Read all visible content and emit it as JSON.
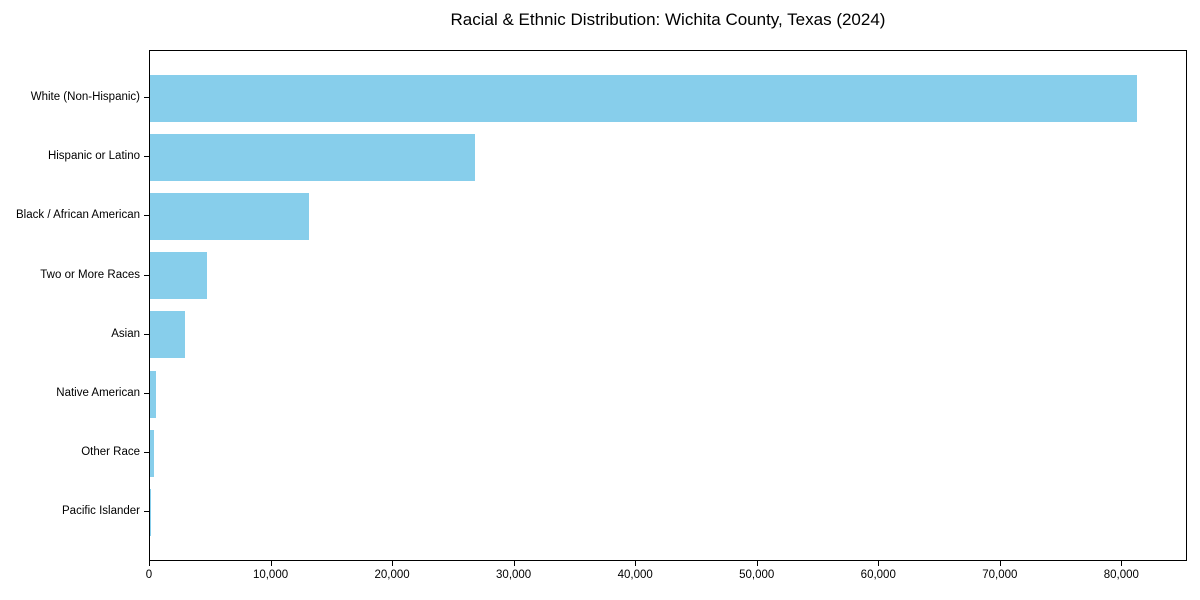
{
  "figure": {
    "title": "Racial & Ethnic Distribution: Wichita County, Texas (2024)"
  },
  "chart_data": {
    "type": "bar",
    "orientation": "horizontal",
    "title": "Racial & Ethnic Distribution: Wichita County, Texas (2024)",
    "categories": [
      "White (Non-Hispanic)",
      "Hispanic or Latino",
      "Black / African American",
      "Two or More Races",
      "Asian",
      "Native American",
      "Other Race",
      "Pacific Islander"
    ],
    "values": [
      81200,
      26700,
      13100,
      4700,
      2900,
      520,
      300,
      100
    ],
    "bar_color": "#87CEEB",
    "x_ticks": {
      "values": [
        0,
        10000,
        20000,
        30000,
        40000,
        50000,
        60000,
        70000,
        80000
      ],
      "labels": [
        "0",
        "10,000",
        "20,000",
        "30,000",
        "40,000",
        "50,000",
        "60,000",
        "70,000",
        "80,000"
      ]
    },
    "xlim": [
      0,
      85400
    ],
    "xlabel": "",
    "ylabel": "",
    "grid": false,
    "legend": "none",
    "background_color": "#ffffff",
    "text_color": "#000000"
  }
}
